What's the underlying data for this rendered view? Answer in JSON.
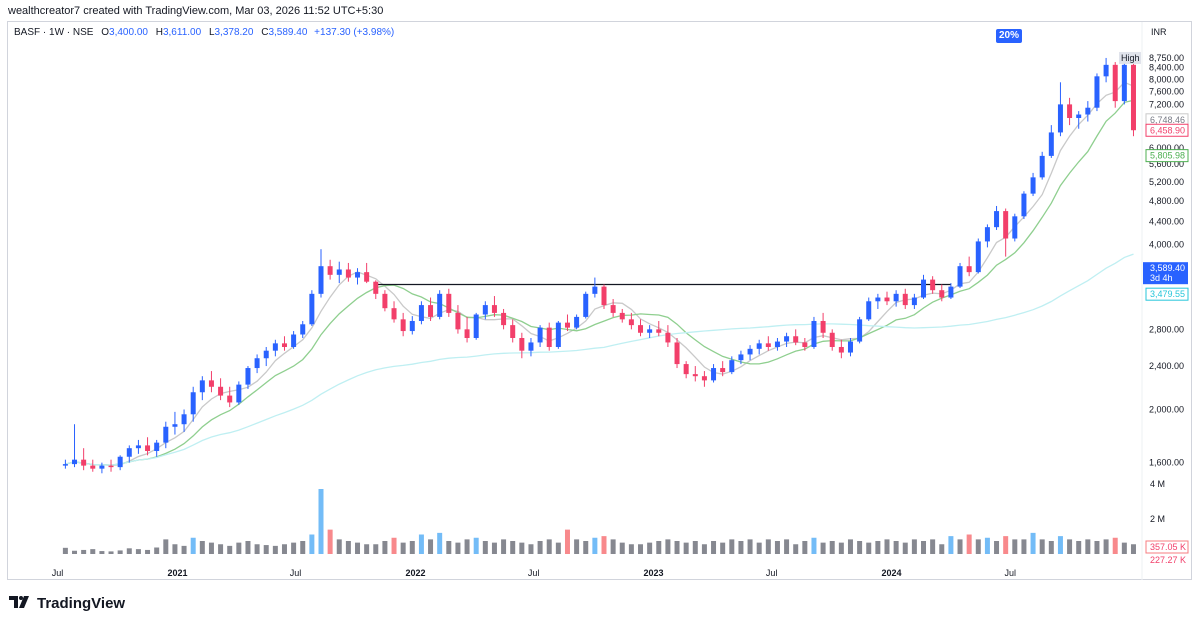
{
  "header": {
    "credit": "wealthcreator7 created with TradingView.com, Mar 03, 2026 11:52 UTC+5:30"
  },
  "legend": {
    "symbol": "BASF · 1W · NSE",
    "open_label": "O",
    "open": "3,400.00",
    "high_label": "H",
    "high": "3,611.00",
    "low_label": "L",
    "low": "3,378.20",
    "close_label": "C",
    "close": "3,589.40",
    "change": "+137.30 (+3.98%)"
  },
  "badge": "20%",
  "currency": "INR",
  "brand": "TradingView",
  "colors": {
    "up": "#2962ff",
    "down": "#f23f6a",
    "ma_grey": "#c9c9c9",
    "ma_green": "#8fcf8f",
    "ma_cyan": "#bfeff2",
    "level": "#131722"
  },
  "chart_data": {
    "type": "candlestick",
    "timeframe": "1W",
    "y_scale": "log",
    "ylim": [
      1500,
      9200
    ],
    "y_ticks": [
      "8,750.00",
      "8,400.00",
      "8,000.00",
      "7,600.00",
      "7,200.00",
      "6,000.00",
      "5,600.00",
      "5,200.00",
      "4,800.00",
      "4,400.00",
      "4,000.00",
      "2,800.00",
      "2,400.00",
      "2,000.00",
      "1,600.00"
    ],
    "x_ticks": [
      "Jul",
      "2021",
      "Jul",
      "2022",
      "Jul",
      "2023",
      "Jul",
      "2024",
      "Jul"
    ],
    "price_labels": [
      {
        "text": "High",
        "value": 8750
      },
      {
        "text": "6,748.46",
        "value": 6748.46
      },
      {
        "text": "6,458.90",
        "value": 6458.9
      },
      {
        "text": "5,805.98",
        "value": 5805.98
      },
      {
        "text": "3,589.40",
        "value": 3589.4
      },
      {
        "text": "3d 4h",
        "value": 3589.4
      },
      {
        "text": "3,479.55",
        "value": 3479.55
      }
    ],
    "volume_ticks": [
      "4 M",
      "2 M"
    ],
    "volume_labels": [
      "357.05 K",
      "227.27 K"
    ],
    "resistance": {
      "from": "2021-11",
      "to": "2024-04",
      "value": 3380
    },
    "candles": [
      {
        "d": "2020-07-13",
        "o": 1580,
        "h": 1620,
        "l": 1560,
        "c": 1590
      },
      {
        "d": "2020-07-27",
        "o": 1590,
        "h": 1880,
        "l": 1570,
        "c": 1620
      },
      {
        "d": "2020-08-10",
        "o": 1620,
        "h": 1700,
        "l": 1550,
        "c": 1580
      },
      {
        "d": "2020-08-24",
        "o": 1580,
        "h": 1620,
        "l": 1540,
        "c": 1560
      },
      {
        "d": "2020-09-07",
        "o": 1560,
        "h": 1600,
        "l": 1530,
        "c": 1580
      },
      {
        "d": "2020-09-21",
        "o": 1580,
        "h": 1620,
        "l": 1540,
        "c": 1570
      },
      {
        "d": "2020-10-05",
        "o": 1570,
        "h": 1650,
        "l": 1550,
        "c": 1640
      },
      {
        "d": "2020-10-19",
        "o": 1640,
        "h": 1720,
        "l": 1600,
        "c": 1700
      },
      {
        "d": "2020-11-02",
        "o": 1700,
        "h": 1760,
        "l": 1660,
        "c": 1720
      },
      {
        "d": "2020-11-16",
        "o": 1720,
        "h": 1780,
        "l": 1650,
        "c": 1680
      },
      {
        "d": "2020-11-30",
        "o": 1680,
        "h": 1760,
        "l": 1640,
        "c": 1740
      },
      {
        "d": "2020-12-14",
        "o": 1740,
        "h": 1900,
        "l": 1700,
        "c": 1860
      },
      {
        "d": "2020-12-28",
        "o": 1860,
        "h": 1980,
        "l": 1800,
        "c": 1880
      },
      {
        "d": "2021-01-11",
        "o": 1880,
        "h": 2000,
        "l": 1820,
        "c": 1960
      },
      {
        "d": "2021-01-25",
        "o": 1960,
        "h": 2200,
        "l": 1900,
        "c": 2150
      },
      {
        "d": "2021-02-08",
        "o": 2150,
        "h": 2300,
        "l": 2080,
        "c": 2260
      },
      {
        "d": "2021-02-22",
        "o": 2260,
        "h": 2350,
        "l": 2150,
        "c": 2200
      },
      {
        "d": "2021-03-08",
        "o": 2200,
        "h": 2280,
        "l": 2080,
        "c": 2120
      },
      {
        "d": "2021-03-22",
        "o": 2120,
        "h": 2200,
        "l": 2020,
        "c": 2060
      },
      {
        "d": "2021-04-05",
        "o": 2060,
        "h": 2250,
        "l": 2040,
        "c": 2220
      },
      {
        "d": "2021-04-19",
        "o": 2220,
        "h": 2400,
        "l": 2180,
        "c": 2380
      },
      {
        "d": "2021-05-03",
        "o": 2380,
        "h": 2520,
        "l": 2330,
        "c": 2480
      },
      {
        "d": "2021-05-17",
        "o": 2480,
        "h": 2600,
        "l": 2400,
        "c": 2560
      },
      {
        "d": "2021-05-31",
        "o": 2560,
        "h": 2680,
        "l": 2500,
        "c": 2640
      },
      {
        "d": "2021-06-14",
        "o": 2640,
        "h": 2720,
        "l": 2560,
        "c": 2600
      },
      {
        "d": "2021-06-28",
        "o": 2600,
        "h": 2780,
        "l": 2580,
        "c": 2740
      },
      {
        "d": "2021-07-12",
        "o": 2740,
        "h": 2900,
        "l": 2700,
        "c": 2860
      },
      {
        "d": "2021-07-26",
        "o": 2860,
        "h": 3300,
        "l": 2840,
        "c": 3250
      },
      {
        "d": "2021-08-09",
        "o": 3250,
        "h": 3920,
        "l": 3200,
        "c": 3650
      },
      {
        "d": "2021-08-23",
        "o": 3650,
        "h": 3750,
        "l": 3450,
        "c": 3520
      },
      {
        "d": "2021-09-06",
        "o": 3520,
        "h": 3720,
        "l": 3400,
        "c": 3600
      },
      {
        "d": "2021-09-20",
        "o": 3600,
        "h": 3700,
        "l": 3420,
        "c": 3480
      },
      {
        "d": "2021-10-04",
        "o": 3480,
        "h": 3620,
        "l": 3380,
        "c": 3560
      },
      {
        "d": "2021-10-18",
        "o": 3560,
        "h": 3700,
        "l": 3400,
        "c": 3420
      },
      {
        "d": "2021-11-01",
        "o": 3420,
        "h": 3440,
        "l": 3180,
        "c": 3250
      },
      {
        "d": "2021-11-15",
        "o": 3250,
        "h": 3300,
        "l": 3020,
        "c": 3060
      },
      {
        "d": "2021-11-29",
        "o": 3060,
        "h": 3150,
        "l": 2880,
        "c": 2920
      },
      {
        "d": "2021-12-13",
        "o": 2920,
        "h": 3000,
        "l": 2720,
        "c": 2780
      },
      {
        "d": "2021-12-27",
        "o": 2780,
        "h": 2960,
        "l": 2740,
        "c": 2900
      },
      {
        "d": "2022-01-10",
        "o": 2900,
        "h": 3150,
        "l": 2860,
        "c": 3100
      },
      {
        "d": "2022-01-24",
        "o": 3100,
        "h": 3200,
        "l": 2900,
        "c": 2950
      },
      {
        "d": "2022-02-07",
        "o": 2950,
        "h": 3300,
        "l": 2920,
        "c": 3250
      },
      {
        "d": "2022-02-21",
        "o": 3250,
        "h": 3320,
        "l": 2950,
        "c": 3000
      },
      {
        "d": "2022-03-07",
        "o": 3000,
        "h": 3100,
        "l": 2750,
        "c": 2800
      },
      {
        "d": "2022-03-21",
        "o": 2800,
        "h": 2950,
        "l": 2650,
        "c": 2700
      },
      {
        "d": "2022-04-04",
        "o": 2700,
        "h": 3000,
        "l": 2680,
        "c": 2980
      },
      {
        "d": "2022-04-18",
        "o": 2980,
        "h": 3150,
        "l": 2920,
        "c": 3100
      },
      {
        "d": "2022-05-02",
        "o": 3100,
        "h": 3220,
        "l": 2950,
        "c": 3000
      },
      {
        "d": "2022-05-16",
        "o": 3000,
        "h": 3050,
        "l": 2800,
        "c": 2850
      },
      {
        "d": "2022-05-30",
        "o": 2850,
        "h": 2920,
        "l": 2650,
        "c": 2700
      },
      {
        "d": "2022-06-13",
        "o": 2700,
        "h": 2760,
        "l": 2480,
        "c": 2560
      },
      {
        "d": "2022-06-27",
        "o": 2560,
        "h": 2700,
        "l": 2500,
        "c": 2650
      },
      {
        "d": "2022-07-11",
        "o": 2650,
        "h": 2850,
        "l": 2600,
        "c": 2820
      },
      {
        "d": "2022-07-25",
        "o": 2820,
        "h": 2880,
        "l": 2560,
        "c": 2600
      },
      {
        "d": "2022-08-08",
        "o": 2600,
        "h": 2900,
        "l": 2580,
        "c": 2880
      },
      {
        "d": "2022-08-22",
        "o": 2880,
        "h": 2980,
        "l": 2780,
        "c": 2820
      },
      {
        "d": "2022-09-05",
        "o": 2820,
        "h": 2980,
        "l": 2800,
        "c": 2950
      },
      {
        "d": "2022-09-19",
        "o": 2950,
        "h": 3280,
        "l": 2930,
        "c": 3250
      },
      {
        "d": "2022-10-03",
        "o": 3250,
        "h": 3480,
        "l": 3200,
        "c": 3350
      },
      {
        "d": "2022-10-17",
        "o": 3350,
        "h": 3380,
        "l": 3050,
        "c": 3100
      },
      {
        "d": "2022-10-31",
        "o": 3100,
        "h": 3180,
        "l": 2950,
        "c": 3000
      },
      {
        "d": "2022-11-14",
        "o": 3000,
        "h": 3050,
        "l": 2880,
        "c": 2920
      },
      {
        "d": "2022-11-28",
        "o": 2920,
        "h": 3000,
        "l": 2800,
        "c": 2850
      },
      {
        "d": "2022-12-12",
        "o": 2850,
        "h": 2920,
        "l": 2720,
        "c": 2760
      },
      {
        "d": "2022-12-26",
        "o": 2760,
        "h": 2850,
        "l": 2700,
        "c": 2800
      },
      {
        "d": "2023-01-09",
        "o": 2800,
        "h": 2900,
        "l": 2720,
        "c": 2760
      },
      {
        "d": "2023-01-23",
        "o": 2760,
        "h": 2850,
        "l": 2600,
        "c": 2650
      },
      {
        "d": "2023-02-06",
        "o": 2650,
        "h": 2700,
        "l": 2380,
        "c": 2420
      },
      {
        "d": "2023-02-20",
        "o": 2420,
        "h": 2450,
        "l": 2280,
        "c": 2320
      },
      {
        "d": "2023-03-06",
        "o": 2320,
        "h": 2400,
        "l": 2250,
        "c": 2300
      },
      {
        "d": "2023-03-20",
        "o": 2300,
        "h": 2350,
        "l": 2200,
        "c": 2260
      },
      {
        "d": "2023-04-03",
        "o": 2260,
        "h": 2420,
        "l": 2240,
        "c": 2380
      },
      {
        "d": "2023-04-17",
        "o": 2380,
        "h": 2450,
        "l": 2300,
        "c": 2340
      },
      {
        "d": "2023-05-01",
        "o": 2340,
        "h": 2500,
        "l": 2320,
        "c": 2460
      },
      {
        "d": "2023-05-15",
        "o": 2460,
        "h": 2560,
        "l": 2420,
        "c": 2520
      },
      {
        "d": "2023-05-29",
        "o": 2520,
        "h": 2620,
        "l": 2460,
        "c": 2580
      },
      {
        "d": "2023-06-12",
        "o": 2580,
        "h": 2680,
        "l": 2520,
        "c": 2640
      },
      {
        "d": "2023-06-26",
        "o": 2640,
        "h": 2720,
        "l": 2560,
        "c": 2600
      },
      {
        "d": "2023-07-10",
        "o": 2600,
        "h": 2700,
        "l": 2560,
        "c": 2660
      },
      {
        "d": "2023-07-24",
        "o": 2660,
        "h": 2760,
        "l": 2600,
        "c": 2720
      },
      {
        "d": "2023-08-07",
        "o": 2720,
        "h": 2800,
        "l": 2620,
        "c": 2650
      },
      {
        "d": "2023-08-21",
        "o": 2650,
        "h": 2700,
        "l": 2560,
        "c": 2600
      },
      {
        "d": "2023-09-04",
        "o": 2600,
        "h": 2950,
        "l": 2580,
        "c": 2900
      },
      {
        "d": "2023-09-18",
        "o": 2900,
        "h": 3000,
        "l": 2700,
        "c": 2760
      },
      {
        "d": "2023-10-02",
        "o": 2760,
        "h": 2800,
        "l": 2560,
        "c": 2600
      },
      {
        "d": "2023-10-16",
        "o": 2600,
        "h": 2680,
        "l": 2480,
        "c": 2540
      },
      {
        "d": "2023-10-30",
        "o": 2540,
        "h": 2700,
        "l": 2500,
        "c": 2660
      },
      {
        "d": "2023-11-13",
        "o": 2660,
        "h": 2950,
        "l": 2640,
        "c": 2920
      },
      {
        "d": "2023-11-27",
        "o": 2920,
        "h": 3200,
        "l": 2900,
        "c": 3150
      },
      {
        "d": "2023-12-11",
        "o": 3150,
        "h": 3250,
        "l": 3050,
        "c": 3200
      },
      {
        "d": "2023-12-25",
        "o": 3200,
        "h": 3280,
        "l": 3100,
        "c": 3150
      },
      {
        "d": "2024-01-08",
        "o": 3150,
        "h": 3300,
        "l": 3080,
        "c": 3250
      },
      {
        "d": "2024-01-22",
        "o": 3250,
        "h": 3320,
        "l": 3050,
        "c": 3100
      },
      {
        "d": "2024-02-05",
        "o": 3100,
        "h": 3250,
        "l": 3050,
        "c": 3200
      },
      {
        "d": "2024-02-19",
        "o": 3200,
        "h": 3520,
        "l": 3180,
        "c": 3450
      },
      {
        "d": "2024-03-04",
        "o": 3450,
        "h": 3500,
        "l": 3250,
        "c": 3300
      },
      {
        "d": "2024-03-18",
        "o": 3300,
        "h": 3380,
        "l": 3150,
        "c": 3200
      },
      {
        "d": "2024-04-01",
        "o": 3200,
        "h": 3400,
        "l": 3180,
        "c": 3350
      },
      {
        "d": "2024-04-15",
        "o": 3350,
        "h": 3700,
        "l": 3330,
        "c": 3650
      },
      {
        "d": "2024-04-29",
        "o": 3650,
        "h": 3800,
        "l": 3500,
        "c": 3560
      },
      {
        "d": "2024-05-13",
        "o": 3560,
        "h": 4100,
        "l": 3540,
        "c": 4050
      },
      {
        "d": "2024-05-27",
        "o": 4050,
        "h": 4350,
        "l": 3950,
        "c": 4300
      },
      {
        "d": "2024-06-10",
        "o": 4300,
        "h": 4700,
        "l": 4250,
        "c": 4600
      },
      {
        "d": "2024-06-24",
        "o": 4600,
        "h": 4650,
        "l": 3800,
        "c": 4100
      },
      {
        "d": "2024-07-08",
        "o": 4100,
        "h": 4550,
        "l": 4050,
        "c": 4500
      },
      {
        "d": "2024-07-22",
        "o": 4500,
        "h": 5000,
        "l": 4450,
        "c": 4950
      },
      {
        "d": "2024-08-05",
        "o": 4950,
        "h": 5400,
        "l": 4900,
        "c": 5300
      },
      {
        "d": "2024-08-19",
        "o": 5300,
        "h": 5900,
        "l": 5250,
        "c": 5800
      },
      {
        "d": "2024-09-02",
        "o": 5800,
        "h": 6600,
        "l": 5750,
        "c": 6400
      },
      {
        "d": "2024-09-16",
        "o": 6400,
        "h": 7900,
        "l": 6300,
        "c": 7200
      },
      {
        "d": "2024-09-30",
        "o": 7200,
        "h": 7400,
        "l": 6600,
        "c": 6800
      },
      {
        "d": "2024-10-14",
        "o": 6800,
        "h": 7000,
        "l": 6500,
        "c": 6900
      },
      {
        "d": "2024-10-28",
        "o": 6900,
        "h": 7300,
        "l": 6700,
        "c": 7100
      },
      {
        "d": "2024-11-11",
        "o": 7100,
        "h": 8200,
        "l": 7000,
        "c": 8100
      },
      {
        "d": "2024-11-25",
        "o": 8100,
        "h": 8750,
        "l": 7900,
        "c": 8500
      },
      {
        "d": "2024-12-09",
        "o": 8500,
        "h": 8600,
        "l": 7100,
        "c": 7300
      },
      {
        "d": "2024-12-23",
        "o": 7300,
        "h": 8700,
        "l": 7200,
        "c": 8500
      },
      {
        "d": "2025-01-06",
        "o": 8500,
        "h": 8700,
        "l": 6300,
        "c": 6460
      }
    ],
    "volume": [
      0.38,
      0.2,
      0.25,
      0.3,
      0.18,
      0.16,
      0.22,
      0.35,
      0.3,
      0.25,
      0.4,
      0.9,
      0.6,
      0.5,
      1.0,
      0.8,
      0.7,
      0.6,
      0.5,
      0.7,
      0.8,
      0.6,
      0.55,
      0.5,
      0.6,
      0.7,
      0.8,
      1.2,
      4.0,
      1.5,
      0.9,
      0.8,
      0.7,
      0.6,
      0.6,
      0.8,
      1.0,
      0.7,
      0.8,
      1.2,
      0.9,
      1.3,
      0.8,
      0.7,
      0.9,
      1.0,
      0.8,
      0.7,
      0.9,
      0.8,
      0.7,
      0.6,
      0.8,
      0.9,
      0.7,
      1.5,
      0.9,
      0.8,
      1.0,
      1.1,
      0.9,
      0.7,
      0.6,
      0.6,
      0.7,
      0.8,
      0.9,
      0.8,
      0.7,
      0.8,
      0.6,
      0.8,
      0.7,
      0.9,
      0.8,
      0.9,
      0.7,
      0.9,
      0.8,
      0.9,
      0.6,
      0.8,
      1.0,
      0.7,
      0.8,
      0.7,
      0.9,
      0.8,
      0.7,
      0.8,
      0.9,
      0.8,
      0.7,
      0.9,
      0.8,
      0.9,
      0.6,
      1.1,
      0.9,
      1.2,
      0.9,
      1.0,
      0.8,
      1.1,
      0.9,
      0.9,
      1.3,
      0.9,
      0.8,
      1.1,
      0.9,
      0.8,
      0.9,
      0.8,
      0.9,
      1.0,
      0.7,
      0.6,
      0.8,
      0.36
    ]
  }
}
